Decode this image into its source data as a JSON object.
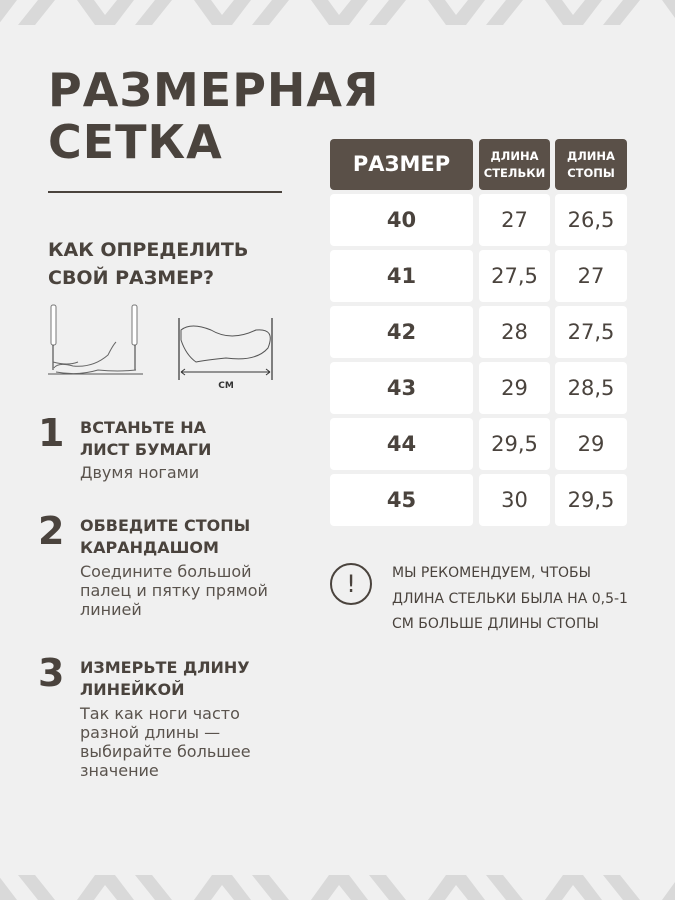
{
  "title": [
    "РАЗМЕРНАЯ",
    "СЕТКА"
  ],
  "subtitle": [
    "КАК ОПРЕДЕЛИТЬ",
    "СВОЙ РАЗМЕР?"
  ],
  "illustration_unit": "СМ",
  "steps": [
    {
      "num": "1",
      "heading": "ВСТАНЬТЕ НА ЛИСТ БУМАГИ",
      "desc": "Двумя ногами"
    },
    {
      "num": "2",
      "heading": "ОБВЕДИТЕ СТОПЫ КАРАНДАШОМ",
      "desc": "Соедините большой палец и пятку прямой линией"
    },
    {
      "num": "3",
      "heading": "ИЗМЕРЬТЕ ДЛИНУ ЛИНЕЙКОЙ",
      "desc": "Так как ноги часто разной длины — выбирайте большее значение"
    }
  ],
  "table": {
    "headers": [
      "РАЗМЕР",
      "ДЛИНА СТЕЛЬКИ",
      "ДЛИНА СТОПЫ"
    ],
    "rows": [
      [
        "40",
        "27",
        "26,5"
      ],
      [
        "41",
        "27,5",
        "27"
      ],
      [
        "42",
        "28",
        "27,5"
      ],
      [
        "43",
        "29",
        "28,5"
      ],
      [
        "44",
        "29,5",
        "29"
      ],
      [
        "45",
        "30",
        "29,5"
      ]
    ]
  },
  "note": {
    "icon": "exclamation-circle-icon",
    "text": "МЫ РЕКОМЕНДУЕМ, ЧТОБЫ ДЛИНА СТЕЛЬКИ БЫЛА НА 0,5-1 СМ БОЛЬШЕ ДЛИНЫ СТОПЫ"
  },
  "colors": {
    "background": "#f0f0f0",
    "header": "#5a5048",
    "text": "#4a433d",
    "pattern": "#d9d9d9"
  }
}
